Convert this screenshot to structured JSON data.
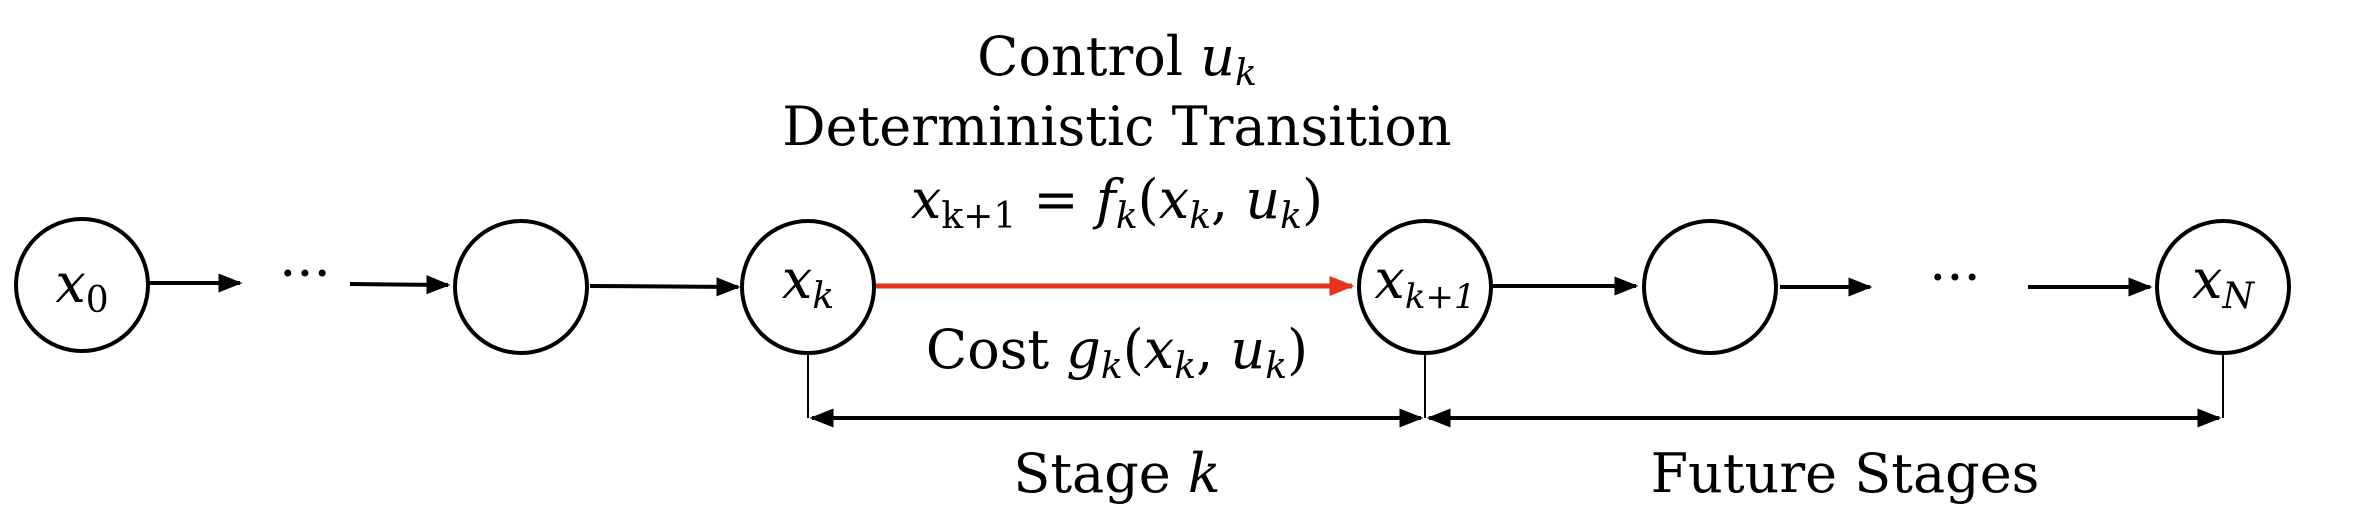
{
  "nodes": [
    {
      "id": "n0",
      "main": "x",
      "sub": "0"
    },
    {
      "id": "n1",
      "main": "",
      "sub": ""
    },
    {
      "id": "nk",
      "main": "x",
      "sub": "k"
    },
    {
      "id": "nk1",
      "main": "x",
      "sub": "k+1"
    },
    {
      "id": "n4",
      "main": "",
      "sub": ""
    },
    {
      "id": "nN",
      "main": "x",
      "sub": "N"
    }
  ],
  "dots": "···",
  "transition": {
    "control_prefix": "Control ",
    "control_var": "u",
    "control_sub": "k",
    "title": "Deterministic Transition",
    "eq_lhs_var": "x",
    "eq_lhs_sub": "k+1",
    "eq_eq": " = ",
    "eq_f": "f",
    "eq_f_sub": "k",
    "eq_open": "(",
    "eq_x": "x",
    "eq_x_sub": "k",
    "eq_comma": ", ",
    "eq_u": "u",
    "eq_u_sub": "k",
    "eq_close": ")"
  },
  "cost": {
    "prefix": "Cost ",
    "g": "g",
    "g_sub": "k",
    "open": "(",
    "x": "x",
    "x_sub": "k",
    "comma": ", ",
    "u": "u",
    "u_sub": "k",
    "close": ")"
  },
  "stages": {
    "current_prefix": "Stage ",
    "current_var": "k",
    "future": "Future Stages"
  },
  "colors": {
    "transition_arrow": "#e8321e",
    "lines": "#000000"
  }
}
